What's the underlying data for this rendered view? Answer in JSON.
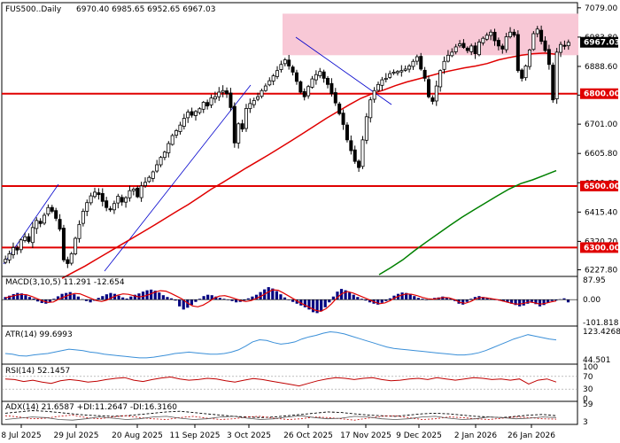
{
  "header": {
    "symbol": "FUS500..Daily",
    "ohlc": "6970.40 6985.65 6952.65 6967.03"
  },
  "colors": {
    "candle": "#000000",
    "sma_fast": "#e00000",
    "sma_slow": "#008000",
    "support_line": "#e00000",
    "zone": "#f8c8d6",
    "trend_line": "#0000cc",
    "macd_hist": "#000080",
    "macd_signal": "#e00000",
    "atr": "#3a8fd8",
    "rsi": "#c00000",
    "adx": "#000000",
    "plus_di": "#c00000",
    "minus_di": "#555555"
  },
  "chart_data": [
    {
      "type": "candlestick",
      "title": "FUS500..Daily",
      "x_tick_labels": [
        "8 Jul 2025",
        "29 Jul 2025",
        "20 Aug 2025",
        "11 Sep 2025",
        "3 Oct 2025",
        "26 Oct 2025",
        "17 Nov 2025",
        "9 Dec 2025",
        "2 Jan 2026",
        "26 Jan 2026"
      ],
      "y_tick_labels": [
        "7079.00",
        "6983.80",
        "6888.60",
        "6795.40",
        "6701.00",
        "6605.80",
        "6510.60",
        "6415.40",
        "6320.20",
        "6227.80"
      ],
      "ylim": [
        6212,
        7090
      ],
      "current_price": "6967.03",
      "levels": [
        "6800.00",
        "6500.00",
        "6300.00"
      ],
      "resistance_zone": [
        6925,
        7060
      ],
      "closes": [
        6262,
        6280,
        6300,
        6292,
        6325,
        6335,
        6320,
        6365,
        6388,
        6378,
        6405,
        6430,
        6418,
        6395,
        6360,
        6260,
        6248,
        6280,
        6330,
        6375,
        6418,
        6446,
        6468,
        6480,
        6472,
        6450,
        6430,
        6425,
        6443,
        6467,
        6448,
        6462,
        6485,
        6490,
        6465,
        6500,
        6512,
        6528,
        6546,
        6569,
        6593,
        6610,
        6638,
        6664,
        6680,
        6698,
        6720,
        6740,
        6730,
        6742,
        6751,
        6772,
        6760,
        6786,
        6790,
        6805,
        6810,
        6800,
        6755,
        6640,
        6702,
        6685,
        6752,
        6768,
        6778,
        6790,
        6810,
        6825,
        6842,
        6858,
        6875,
        6895,
        6910,
        6890,
        6870,
        6840,
        6805,
        6790,
        6823,
        6848,
        6862,
        6872,
        6850,
        6830,
        6800,
        6770,
        6735,
        6700,
        6650,
        6615,
        6580,
        6560,
        6650,
        6725,
        6780,
        6810,
        6830,
        6845,
        6850,
        6865,
        6870,
        6872,
        6875,
        6880,
        6890,
        6905,
        6920,
        6880,
        6850,
        6790,
        6775,
        6825,
        6875,
        6905,
        6925,
        6935,
        6952,
        6962,
        6950,
        6940,
        6955,
        6930,
        6968,
        6980,
        6990,
        7000,
        6972,
        6955,
        6945,
        6985,
        7000,
        6990,
        6875,
        6850,
        6890,
        6942,
        6995,
        7010,
        6970,
        6940,
        6895,
        6780,
        6935,
        6960,
        6955,
        6967.03
      ],
      "sma_fast_values": [
        6200,
        6220,
        6240,
        6262,
        6284,
        6306,
        6328,
        6350,
        6372,
        6395,
        6418,
        6440,
        6465,
        6490,
        6512,
        6535,
        6558,
        6580,
        6602,
        6625,
        6648,
        6672,
        6696,
        6720,
        6742,
        6764,
        6785,
        6800,
        6812,
        6826,
        6838,
        6848,
        6858,
        6868,
        6876,
        6884,
        6890,
        6898,
        6910,
        6918,
        6925,
        6930,
        6932,
        6928
      ],
      "sma_slow_values": [
        6212,
        6235,
        6260,
        6290,
        6318,
        6345,
        6372,
        6398,
        6422,
        6445,
        6468,
        6490,
        6508,
        6520,
        6535,
        6550
      ]
    },
    {
      "type": "bar",
      "title": "MACD(3,10,5) 11.291 -12.654",
      "y_tick_labels": [
        "87.95",
        "0.00",
        "-101.818"
      ],
      "ylim": [
        -110,
        96
      ],
      "histogram": [
        12,
        18,
        25,
        30,
        28,
        20,
        12,
        5,
        -8,
        -15,
        -18,
        -10,
        4,
        15,
        26,
        30,
        34,
        24,
        14,
        2,
        -6,
        -12,
        -5,
        8,
        16,
        24,
        30,
        26,
        18,
        10,
        5,
        14,
        22,
        28,
        36,
        42,
        45,
        40,
        32,
        20,
        12,
        6,
        -4,
        -30,
        -44,
        -36,
        -24,
        -10,
        4,
        16,
        22,
        20,
        14,
        8,
        4,
        0,
        -6,
        -12,
        -10,
        -4,
        6,
        14,
        22,
        34,
        46,
        56,
        50,
        38,
        24,
        10,
        0,
        -10,
        -18,
        -26,
        -34,
        -44,
        -56,
        -60,
        -52,
        -34,
        -12,
        14,
        36,
        48,
        42,
        32,
        22,
        12,
        4,
        -4,
        -12,
        -18,
        -22,
        -14,
        -6,
        6,
        18,
        26,
        32,
        30,
        26,
        16,
        8,
        4,
        -2,
        2,
        8,
        10,
        14,
        10,
        6,
        -6,
        -18,
        -22,
        -10,
        4,
        12,
        16,
        12,
        8,
        4,
        0,
        -4,
        -8,
        -12,
        -18,
        -24,
        -30,
        -26,
        -18,
        -10,
        -20,
        -30,
        -24,
        -14,
        -6,
        -4,
        2,
        6,
        -12
      ],
      "signal": [
        8,
        14,
        20,
        24,
        22,
        14,
        4,
        -6,
        -12,
        -10,
        2,
        12,
        22,
        28,
        26,
        16,
        6,
        -4,
        -8,
        -2,
        10,
        20,
        26,
        24,
        18,
        12,
        16,
        24,
        34,
        40,
        38,
        28,
        16,
        4,
        -14,
        -28,
        -32,
        -24,
        -10,
        6,
        16,
        18,
        12,
        4,
        -4,
        -8,
        -4,
        6,
        18,
        32,
        44,
        42,
        30,
        16,
        2,
        -12,
        -24,
        -36,
        -48,
        -52,
        -40,
        -18,
        8,
        28,
        36,
        30,
        20,
        10,
        0,
        -10,
        -18,
        -14,
        -4,
        10,
        20,
        26,
        24,
        18,
        10,
        4,
        2,
        6,
        10,
        8,
        0,
        -12,
        -16,
        -8,
        4,
        10,
        8,
        4,
        0,
        -6,
        -12,
        -18,
        -20,
        -16,
        -10,
        -14,
        -20,
        -16,
        -10,
        -6
      ]
    },
    {
      "type": "line",
      "title": "ATR(14) 99.6993",
      "y_tick_labels": [
        "123.4268",
        "44.501"
      ],
      "ylim": [
        40,
        128
      ],
      "values": [
        62,
        60,
        56,
        55,
        58,
        60,
        62,
        66,
        70,
        74,
        72,
        70,
        66,
        64,
        60,
        58,
        56,
        54,
        52,
        50,
        50,
        52,
        55,
        58,
        62,
        64,
        66,
        64,
        62,
        60,
        60,
        62,
        66,
        72,
        82,
        94,
        100,
        98,
        92,
        88,
        90,
        94,
        102,
        108,
        112,
        118,
        122,
        120,
        116,
        110,
        104,
        98,
        92,
        86,
        80,
        76,
        74,
        72,
        70,
        68,
        66,
        64,
        62,
        60,
        58,
        58,
        60,
        64,
        70,
        78,
        86,
        94,
        102,
        108,
        114,
        110,
        106,
        102,
        99.7
      ]
    },
    {
      "type": "line",
      "title": "RSI(14) 52.1457",
      "y_tick_labels": [
        "100",
        "70",
        "30",
        "0"
      ],
      "ylim": [
        0,
        100
      ],
      "values": [
        62,
        60,
        54,
        58,
        52,
        48,
        56,
        60,
        57,
        52,
        55,
        60,
        64,
        66,
        58,
        54,
        60,
        65,
        68,
        62,
        58,
        60,
        64,
        62,
        56,
        52,
        58,
        63,
        60,
        55,
        50,
        45,
        40,
        48,
        56,
        62,
        66,
        64,
        60,
        64,
        66,
        60,
        56,
        58,
        62,
        64,
        60,
        66,
        62,
        58,
        62,
        66,
        64,
        60,
        62,
        58,
        62,
        46,
        58,
        62,
        52.1
      ]
    },
    {
      "type": "line",
      "title": "ADX(14) 21.6587 +DI:11.2647 -DI:16.3160",
      "y_tick_labels": [
        "59",
        "3"
      ],
      "ylim": [
        0,
        62
      ],
      "adx": [
        30,
        34,
        38,
        36,
        32,
        28,
        24,
        22,
        20,
        22,
        26,
        30,
        34,
        36,
        32,
        28,
        24,
        20,
        18,
        16,
        18,
        22,
        26,
        30,
        34,
        32,
        28,
        24,
        22,
        20,
        24,
        28,
        30,
        28,
        24,
        20,
        18,
        16,
        20,
        24,
        26,
        22
      ],
      "plus_di": [
        22,
        18,
        12,
        14,
        20,
        24,
        16,
        12,
        18,
        22,
        16,
        12,
        10,
        16,
        20,
        14,
        10,
        12,
        18,
        20,
        14,
        10,
        12,
        18,
        16,
        12,
        8,
        14,
        20,
        22,
        16,
        10,
        12,
        18,
        16,
        12,
        10,
        14,
        18,
        16,
        12,
        11
      ],
      "minus_di": [
        10,
        14,
        18,
        16,
        10,
        8,
        12,
        18,
        14,
        10,
        12,
        18,
        20,
        14,
        10,
        12,
        18,
        20,
        14,
        10,
        12,
        18,
        22,
        16,
        12,
        14,
        20,
        18,
        12,
        10,
        12,
        18,
        20,
        14,
        10,
        12,
        18,
        16,
        12,
        14,
        18,
        16
      ]
    }
  ]
}
